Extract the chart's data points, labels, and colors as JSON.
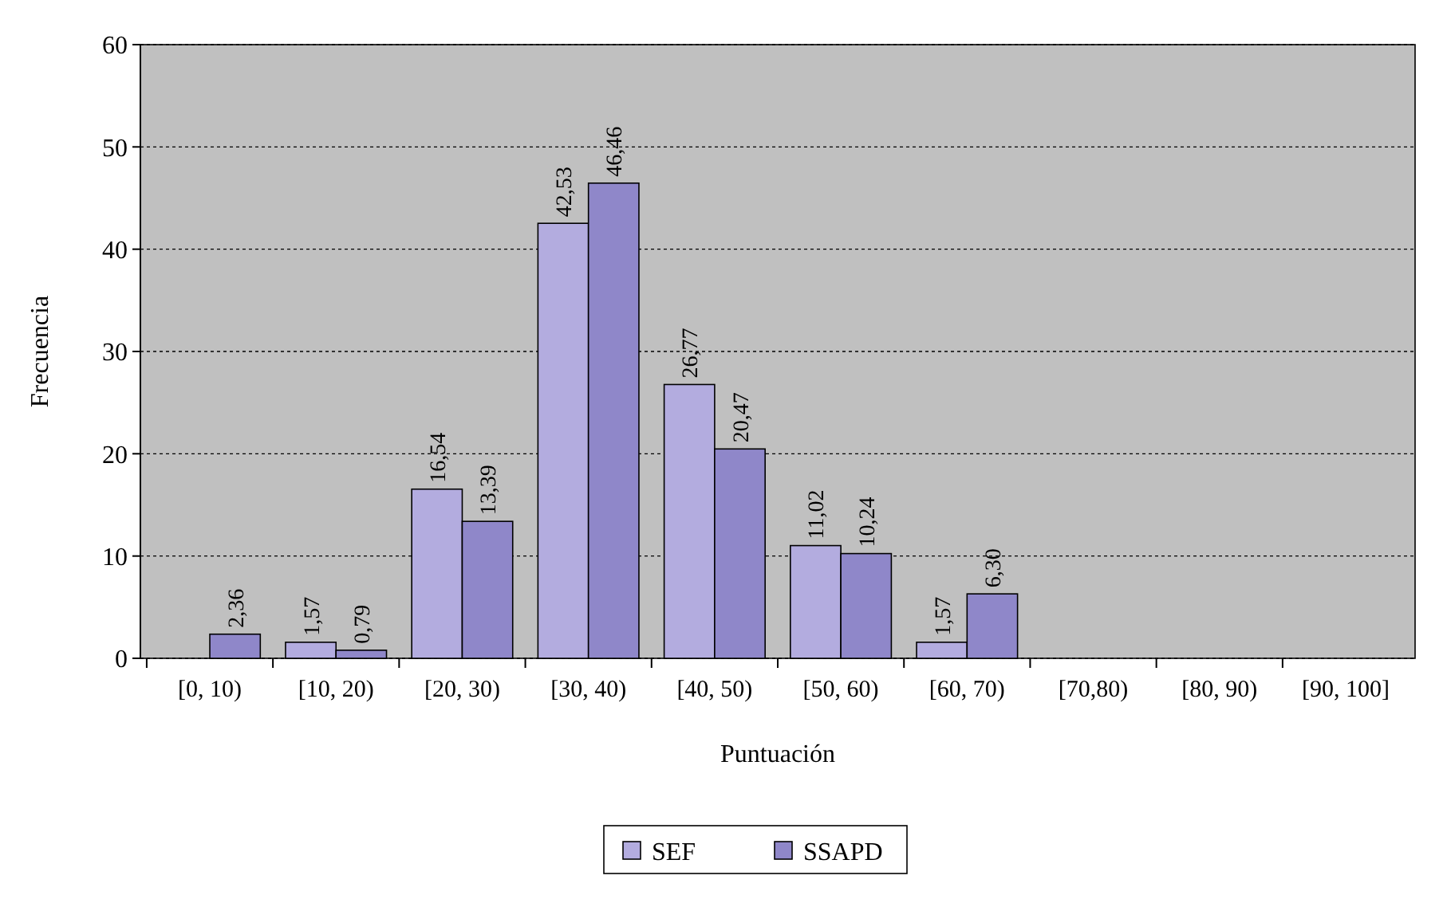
{
  "chart_data": {
    "type": "bar",
    "xlabel": "Puntuación",
    "ylabel": "Frecuencia",
    "categories": [
      "[0, 10)",
      "[10, 20)",
      "[20, 30)",
      "[30, 40)",
      "[40, 50)",
      "[50, 60)",
      "[60, 70)",
      "[70,80)",
      "[80, 90)",
      "[90, 100]"
    ],
    "series": [
      {
        "name": "SEF",
        "color": "#b3acdf",
        "values": [
          0,
          1.57,
          16.54,
          42.53,
          26.77,
          11.02,
          1.57,
          0,
          0,
          0
        ],
        "value_labels": [
          null,
          "1,57",
          "16,54",
          "42,53",
          "26,77",
          "11,02",
          "1,57",
          null,
          null,
          null
        ]
      },
      {
        "name": "SSAPD",
        "color": "#8f87c9",
        "values": [
          2.36,
          0.79,
          13.39,
          46.46,
          20.47,
          10.24,
          6.3,
          0,
          0,
          0
        ],
        "value_labels": [
          "2,36",
          "0,79",
          "13,39",
          "46,46",
          "20,47",
          "10,24",
          "6,30",
          null,
          null,
          null
        ]
      }
    ],
    "ylim": [
      0,
      60
    ],
    "yticks": [
      0,
      10,
      20,
      30,
      40,
      50,
      60
    ],
    "grid": "y",
    "legend": "bottom"
  }
}
